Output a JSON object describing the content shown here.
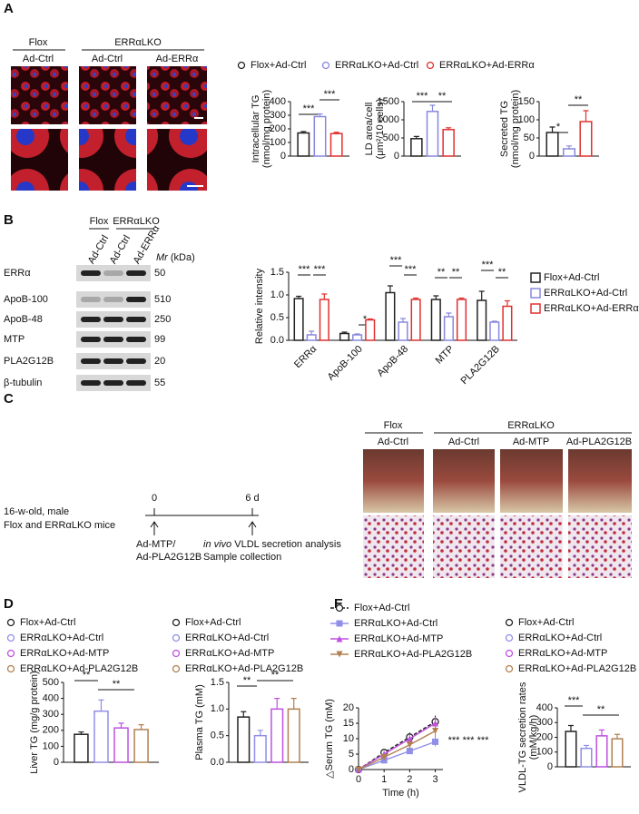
{
  "panel_labels": [
    "A",
    "B",
    "C",
    "D",
    "E"
  ],
  "panel_a": {
    "header": [
      "Flox",
      "ERRαLKO"
    ],
    "columns": [
      "Ad-Ctrl",
      "Ad-Ctrl",
      "Ad-ERRα"
    ]
  },
  "panel_b": {
    "groups": [
      "Flox",
      "ERRαLKO"
    ],
    "lanes": [
      "Ad-Ctrl",
      "Ad-Ctrl",
      "Ad-ERRα"
    ],
    "mr": "Mr",
    "mr_unit": "(kDa)",
    "rows": [
      {
        "protein": "ERRα",
        "kda": 50
      },
      {
        "protein": "ApoB-100",
        "kda": 510
      },
      {
        "protein": "ApoB-48",
        "kda": 250
      },
      {
        "protein": "MTP",
        "kda": 99
      },
      {
        "protein": "PLA2G12B",
        "kda": 20
      },
      {
        "protein": "β-tubulin",
        "kda": 55
      }
    ]
  },
  "panel_c": {
    "start": "0",
    "end": "6 d",
    "mice": [
      "16-w-old, male",
      "Flox and ERRαLKO mice"
    ],
    "treatment": [
      "Ad-MTP/",
      "Ad-PLA2G12B"
    ],
    "analysis_italic": "in vivo",
    "analysis": "VLDL secretion analysis",
    "collection": "Sample collection",
    "header": [
      "Flox",
      "ERRαLKO"
    ],
    "columns": [
      "Ad-Ctrl",
      "Ad-Ctrl",
      "Ad-MTP",
      "Ad-PLA2G12B"
    ]
  },
  "chart_data": [
    {
      "type": "bar",
      "ylabel": [
        "Intracellular TG",
        "(nmol/mg protein)"
      ],
      "ylim": [
        0,
        400
      ],
      "yticks": [
        0,
        100,
        200,
        300,
        400
      ],
      "series": [
        {
          "name": "Flox+Ad-Ctrl",
          "color": "#222222",
          "values": [
            170
          ],
          "errors": [
            10
          ]
        },
        {
          "name": "ERRαLKO+Ad-Ctrl",
          "color": "#8888dd",
          "values": [
            290
          ],
          "errors": [
            20
          ]
        },
        {
          "name": "ERRαLKO+Ad-ERRα",
          "color": "#e03030",
          "values": [
            165
          ],
          "errors": [
            10
          ]
        }
      ],
      "annotations": [
        "***",
        "***"
      ]
    },
    {
      "type": "bar",
      "ylabel": [
        "LD area/cell",
        "(μm²/10 cells)"
      ],
      "ylim": [
        0,
        1500
      ],
      "yticks": [
        0,
        500,
        1000,
        1500
      ],
      "series": [
        {
          "color": "#222222",
          "values": [
            480
          ],
          "errors": [
            60
          ]
        },
        {
          "color": "#8888dd",
          "values": [
            1230
          ],
          "errors": [
            170
          ]
        },
        {
          "color": "#e03030",
          "values": [
            730
          ],
          "errors": [
            50
          ]
        }
      ],
      "annotations": [
        "***",
        "**"
      ]
    },
    {
      "type": "bar",
      "ylabel": [
        "Secreted TG",
        "(nmol/mg protein)"
      ],
      "ylim": [
        0,
        150
      ],
      "yticks": [
        0,
        50,
        100,
        150
      ],
      "series": [
        {
          "color": "#222222",
          "values": [
            65
          ],
          "errors": [
            15
          ]
        },
        {
          "color": "#8888dd",
          "values": [
            20
          ],
          "errors": [
            8
          ]
        },
        {
          "color": "#e03030",
          "values": [
            95
          ],
          "errors": [
            30
          ]
        }
      ],
      "annotations": [
        "*",
        "**"
      ]
    },
    {
      "type": "bar",
      "ylabel": "Relative intensity",
      "ylim": [
        0,
        1.5
      ],
      "yticks": [
        {
          "value": 0,
          "label": "0.0"
        },
        0.5,
        {
          "value": 1,
          "label": "1.0"
        },
        1.5
      ],
      "categories": [
        "ERRα",
        "ApoB-100",
        "ApoB-48",
        "MTP",
        "PLA2G12B"
      ],
      "series": [
        {
          "name": "Flox+Ad-Ctrl",
          "color": "#222222",
          "values": [
            0.92,
            0.15,
            1.05,
            0.9,
            0.88
          ],
          "errors": [
            0.05,
            0.03,
            0.15,
            0.08,
            0.2
          ]
        },
        {
          "name": "ERRαLKO+Ad-Ctrl",
          "color": "#8888dd",
          "values": [
            0.12,
            0.12,
            0.4,
            0.52,
            0.4
          ],
          "errors": [
            0.08,
            0.02,
            0.08,
            0.08,
            0.02
          ]
        },
        {
          "name": "ERRαLKO+Ad-ERRα",
          "color": "#e03030",
          "values": [
            0.9,
            0.45,
            0.9,
            0.9,
            0.75
          ],
          "errors": [
            0.12,
            0.02,
            0.03,
            0.03,
            0.12
          ]
        }
      ],
      "annotations": [
        "***",
        "***",
        "*",
        "***",
        "***",
        "**",
        "**",
        "***",
        "**"
      ]
    },
    {
      "type": "bar",
      "ylabel": "Liver TG (mg/g protein)",
      "ylim": [
        0,
        500
      ],
      "yticks": [
        0,
        100,
        200,
        300,
        400,
        500
      ],
      "series": [
        {
          "name": "Flox+Ad-Ctrl",
          "color": "#222222",
          "values": [
            175
          ],
          "errors": [
            15
          ]
        },
        {
          "name": "ERRαLKO+Ad-Ctrl",
          "color": "#8f8fe8",
          "values": [
            320
          ],
          "errors": [
            70
          ]
        },
        {
          "name": "ERRαLKO+Ad-MTP",
          "color": "#c050e0",
          "values": [
            215
          ],
          "errors": [
            30
          ]
        },
        {
          "name": "ERRαLKO+Ad-PLA2G12B",
          "color": "#b08050",
          "values": [
            205
          ],
          "errors": [
            30
          ]
        }
      ],
      "annotations": [
        "**",
        "**"
      ]
    },
    {
      "type": "bar",
      "ylabel": "Plasma TG (mM)",
      "ylim": [
        0,
        1.5
      ],
      "yticks": [
        {
          "value": 0,
          "label": "0.0"
        },
        0.5,
        {
          "value": 1,
          "label": "1.0"
        },
        1.5
      ],
      "series": [
        {
          "name": "Flox+Ad-Ctrl",
          "color": "#222222",
          "values": [
            0.85
          ],
          "errors": [
            0.1
          ]
        },
        {
          "name": "ERRαLKO+Ad-Ctrl",
          "color": "#8f8fe8",
          "values": [
            0.5
          ],
          "errors": [
            0.1
          ]
        },
        {
          "name": "ERRαLKO+Ad-MTP",
          "color": "#c050e0",
          "values": [
            1.0
          ],
          "errors": [
            0.2
          ]
        },
        {
          "name": "ERRαLKO+Ad-PLA2G12B",
          "color": "#b08050",
          "values": [
            1.0
          ],
          "errors": [
            0.2
          ]
        }
      ],
      "annotations": [
        "**",
        "**"
      ]
    },
    {
      "type": "line",
      "ylabel": "△Serum TG (mM)",
      "xlabel": "Time (h)",
      "x": [
        0,
        1,
        2,
        3
      ],
      "xlim": [
        0,
        3.3
      ],
      "xticks": [
        0,
        1,
        2,
        3
      ],
      "ylim": [
        0,
        20
      ],
      "yticks": [
        0,
        5,
        10,
        15,
        20
      ],
      "series": [
        {
          "name": "Flox+Ad-Ctrl",
          "color": "#222222",
          "line_style": "dashed",
          "marker": "circle",
          "values": [
            0,
            5.5,
            10.5,
            15.5
          ],
          "errors": [
            0,
            1,
            1.5,
            2
          ]
        },
        {
          "name": "ERRαLKO+Ad-Ctrl",
          "color": "#8f8fe8",
          "line_style": "solid",
          "marker": "square",
          "values": [
            0,
            3,
            6,
            9
          ],
          "errors": [
            0,
            0.8,
            1,
            1.5
          ]
        },
        {
          "name": "ERRαLKO+Ad-MTP",
          "color": "#c050e0",
          "line_style": "solid",
          "marker": "triangle",
          "values": [
            0,
            5,
            10,
            15
          ],
          "errors": [
            0,
            1,
            1.5,
            2
          ]
        },
        {
          "name": "ERRαLKO+Ad-PLA2G12B",
          "color": "#b08050",
          "line_style": "solid",
          "marker": "triangle-down",
          "values": [
            0,
            4,
            8,
            12.5
          ],
          "errors": [
            0,
            1,
            1.5,
            2
          ]
        }
      ],
      "annotations": [
        "***",
        "***",
        "***"
      ]
    },
    {
      "type": "bar",
      "ylabel": [
        "VLDL-TG secretion rates",
        "(mM/kg/h)"
      ],
      "ylim": [
        0,
        400
      ],
      "yticks": [
        0,
        100,
        200,
        300,
        400
      ],
      "series": [
        {
          "name": "Flox+Ad-Ctrl",
          "color": "#222222",
          "values": [
            240
          ],
          "errors": [
            40
          ]
        },
        {
          "name": "ERRαLKO+Ad-Ctrl",
          "color": "#8f8fe8",
          "values": [
            125
          ],
          "errors": [
            20
          ]
        },
        {
          "name": "ERRαLKO+Ad-MTP",
          "color": "#c050e0",
          "values": [
            210
          ],
          "errors": [
            40
          ]
        },
        {
          "name": "ERRαLKO+Ad-PLA2G12B",
          "color": "#b08050",
          "values": [
            190
          ],
          "errors": [
            30
          ]
        }
      ],
      "annotations": [
        "***",
        "**"
      ]
    }
  ]
}
